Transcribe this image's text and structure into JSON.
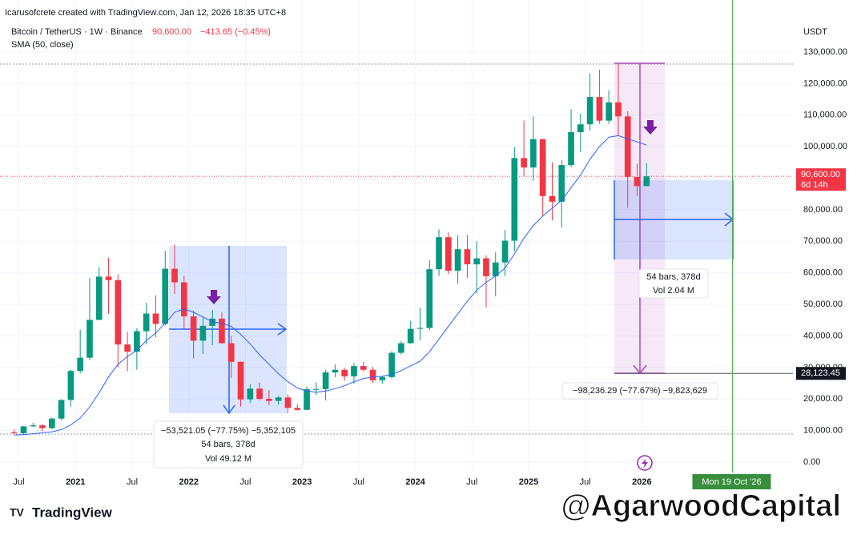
{
  "header": {
    "attribution": "Icarusofcrete created with TradingView.com, Jan 12, 2026 18:35 UTC+8",
    "symbol": "Bitcoin / TetherUS · 1W · Binance",
    "price": "90,600.00",
    "change": "−413.65 (−0.45%)"
  },
  "chart_data": {
    "type": "candlestick",
    "y_unit": "USDT",
    "x": [
      "2020-06",
      "2020-07",
      "2020-08",
      "2020-09",
      "2020-10",
      "2020-11",
      "2020-12",
      "2021-01",
      "2021-02",
      "2021-03",
      "2021-04",
      "2021-05",
      "2021-06",
      "2021-07",
      "2021-08",
      "2021-09",
      "2021-10",
      "2021-11",
      "2021-12",
      "2022-01",
      "2022-02",
      "2022-03",
      "2022-04",
      "2022-05",
      "2022-06",
      "2022-07",
      "2022-08",
      "2022-09",
      "2022-10",
      "2022-11",
      "2022-12",
      "2023-01",
      "2023-02",
      "2023-03",
      "2023-04",
      "2023-05",
      "2023-06",
      "2023-07",
      "2023-08",
      "2023-09",
      "2023-10",
      "2023-11",
      "2023-12",
      "2024-01",
      "2024-02",
      "2024-03",
      "2024-04",
      "2024-05",
      "2024-06",
      "2024-07",
      "2024-08",
      "2024-09",
      "2024-10",
      "2024-11",
      "2024-12",
      "2025-01",
      "2025-02",
      "2025-03",
      "2025-04",
      "2025-05",
      "2025-06",
      "2025-07",
      "2025-08",
      "2025-09",
      "2025-10",
      "2025-11",
      "2025-12",
      "2026-01"
    ],
    "open": [
      9450,
      9140,
      11330,
      11650,
      10780,
      13800,
      19700,
      28900,
      33100,
      45100,
      58800,
      57700,
      37300,
      35000,
      41500,
      47100,
      43800,
      61300,
      57000,
      46200,
      38500,
      43200,
      45500,
      37700,
      31800,
      19900,
      23300,
      20050,
      19400,
      20500,
      17200,
      16550,
      23100,
      23150,
      28450,
      29250,
      27200,
      30450,
      29250,
      25950,
      26950,
      34650,
      37700,
      42250,
      42550,
      61150,
      71300,
      60650,
      67500,
      62700,
      64600,
      58950,
      63300,
      70200,
      96400,
      93400,
      102400,
      84350,
      82550,
      94200,
      104600,
      107100,
      115750,
      108250,
      114050,
      109600,
      90400,
      87500
    ],
    "high": [
      10380,
      11450,
      12470,
      12080,
      14100,
      19900,
      29300,
      41950,
      58350,
      61800,
      64850,
      59500,
      41300,
      42400,
      50500,
      52900,
      67000,
      69000,
      59100,
      48000,
      45800,
      48200,
      47400,
      40000,
      31900,
      24700,
      25200,
      22800,
      21000,
      21500,
      18400,
      23950,
      25250,
      29200,
      31000,
      29800,
      31400,
      31800,
      30200,
      27450,
      35200,
      38400,
      44700,
      48950,
      64000,
      73800,
      72800,
      71950,
      72000,
      70000,
      65600,
      66500,
      73600,
      99800,
      108300,
      109600,
      102500,
      95000,
      95750,
      111900,
      110500,
      123200,
      124450,
      117900,
      126200,
      111200,
      94600,
      94800
    ],
    "low": [
      8900,
      8990,
      11100,
      9850,
      10400,
      13200,
      17600,
      28100,
      32300,
      45000,
      47000,
      30000,
      28800,
      29300,
      37300,
      39600,
      43300,
      53300,
      42000,
      32900,
      34300,
      37100,
      37600,
      26700,
      17600,
      18800,
      19500,
      18100,
      18200,
      15500,
      16300,
      16500,
      21300,
      19550,
      26900,
      25800,
      24800,
      28850,
      25150,
      24900,
      26550,
      34100,
      37600,
      38550,
      41900,
      59000,
      59600,
      56550,
      58400,
      53500,
      49000,
      52550,
      58900,
      66800,
      90500,
      89200,
      78200,
      76600,
      74400,
      93400,
      98200,
      105100,
      107300,
      107250,
      103500,
      80600,
      84400,
      87500
    ],
    "close": [
      9140,
      11330,
      11650,
      10780,
      13800,
      19700,
      28900,
      33100,
      45100,
      58800,
      57700,
      37300,
      35000,
      41500,
      47100,
      43800,
      61300,
      57000,
      46200,
      38500,
      43200,
      45500,
      37700,
      31800,
      19900,
      23300,
      20050,
      19400,
      20500,
      17200,
      16550,
      23100,
      23150,
      28450,
      29250,
      27200,
      30450,
      29250,
      25950,
      26950,
      34650,
      37700,
      42250,
      42550,
      61150,
      71300,
      60650,
      67500,
      62700,
      64600,
      58950,
      63300,
      70200,
      96400,
      93400,
      102400,
      84350,
      82550,
      94200,
      104600,
      107100,
      115750,
      108250,
      114050,
      109600,
      90400,
      87500,
      90600
    ],
    "up_color": "#089981",
    "down_color": "#f23645",
    "sma": {
      "name": "SMA (50, close)",
      "color": "#2962ff",
      "values": [
        8600,
        8700,
        9000,
        9300,
        9600,
        10300,
        11800,
        14000,
        17500,
        22000,
        27000,
        31000,
        33500,
        35500,
        38500,
        41000,
        44000,
        47500,
        48500,
        47500,
        46000,
        44500,
        44000,
        43000,
        40500,
        37500,
        34000,
        31000,
        28000,
        25500,
        23500,
        22500,
        22200,
        22500,
        23300,
        24200,
        25500,
        26500,
        27000,
        27200,
        27800,
        29000,
        30500,
        32000,
        35000,
        39000,
        43000,
        47000,
        51000,
        54500,
        57000,
        59000,
        61500,
        66000,
        71000,
        75000,
        78000,
        80500,
        83000,
        87000,
        91000,
        96000,
        100000,
        103000,
        103500,
        102500,
        101500,
        100500
      ]
    },
    "xlim": [
      "2020-05",
      "2027-05"
    ],
    "xticks": [
      {
        "value": "2020-07",
        "label": "Jul"
      },
      {
        "value": "2021-01",
        "label": "2021"
      },
      {
        "value": "2021-07",
        "label": "Jul"
      },
      {
        "value": "2022-01",
        "label": "2022"
      },
      {
        "value": "2022-07",
        "label": "Jul"
      },
      {
        "value": "2023-01",
        "label": "2023"
      },
      {
        "value": "2023-07",
        "label": "Jul"
      },
      {
        "value": "2024-01",
        "label": "2024"
      },
      {
        "value": "2024-07",
        "label": "Jul"
      },
      {
        "value": "2025-01",
        "label": "2025"
      },
      {
        "value": "2025-07",
        "label": "Jul"
      },
      {
        "value": "2026-01",
        "label": "2026"
      }
    ],
    "ylim": [
      -3300,
      146500
    ],
    "yticks": [
      {
        "value": 0,
        "label": "0.00"
      },
      {
        "value": 10000,
        "label": "10,000.00"
      },
      {
        "value": 20000,
        "label": "20,000.00"
      },
      {
        "value": 30000,
        "label": "30,000.00"
      },
      {
        "value": 40000,
        "label": "40,000.00"
      },
      {
        "value": 50000,
        "label": "50,000.00"
      },
      {
        "value": 60000,
        "label": "60,000.00"
      },
      {
        "value": 70000,
        "label": "70,000.00"
      },
      {
        "value": 80000,
        "label": "80,000.00"
      },
      {
        "value": 90000,
        "label": "90,000.00"
      },
      {
        "value": 100000,
        "label": "100,000.00"
      },
      {
        "value": 110000,
        "label": "110,000.00"
      },
      {
        "value": 120000,
        "label": "120,000.00"
      },
      {
        "value": 130000,
        "label": "130,000.00"
      }
    ],
    "grid": true,
    "last_price": {
      "value": 90600,
      "label": "90,600.00",
      "countdown": "6d 14h"
    },
    "level": {
      "value": 28123.45,
      "label": "28,123.45"
    },
    "date_marker": {
      "value": "2026-10-19",
      "label": "Mon 19 Oct '26"
    }
  },
  "annotations": {
    "left_measure": {
      "change": "−53,521.05 (−77.75%) −5,352,105",
      "bars": "54 bars, 378d",
      "volume": "Vol 49.12 M"
    },
    "right_measure": {
      "change": "−98,236.29 (−77.67%) −9,823,629",
      "bars": "54 bars, 378d",
      "volume": "Vol 2.04 M"
    }
  },
  "footer": {
    "logo": "TradingView",
    "watermark": "@AgarwoodCapital"
  }
}
